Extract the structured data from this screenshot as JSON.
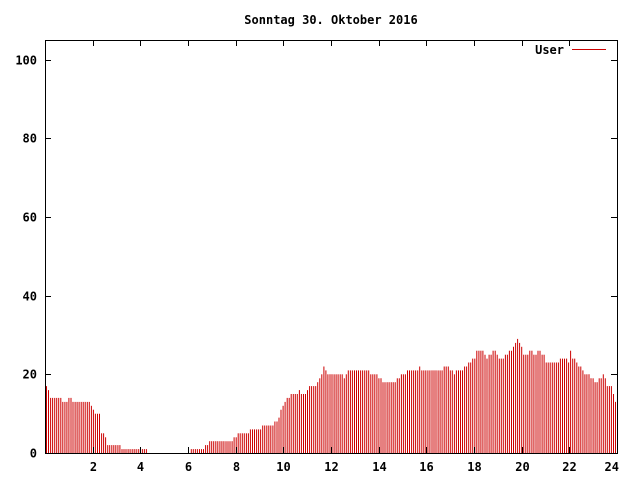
{
  "chart_data": {
    "type": "bar",
    "title": "Sonntag 30. Oktober 2016",
    "xlabel": "",
    "ylabel": "",
    "xlim": [
      0,
      24
    ],
    "ylim": [
      0,
      105
    ],
    "x_ticks": [
      2,
      4,
      6,
      8,
      10,
      12,
      14,
      16,
      18,
      20,
      22,
      24
    ],
    "y_ticks": [
      0,
      20,
      40,
      60,
      80,
      100
    ],
    "grid": false,
    "legend_position": "top-right",
    "color": "#cc0000",
    "series": [
      {
        "name": "User",
        "interval_hours": 0.0833,
        "values": [
          17,
          16,
          14,
          14,
          14,
          14,
          14,
          14,
          13,
          13,
          13,
          14,
          14,
          13,
          13,
          13,
          13,
          13,
          13,
          13,
          13,
          13,
          12,
          11,
          10,
          10,
          10,
          5,
          5,
          4,
          2,
          2,
          2,
          2,
          2,
          2,
          2,
          1,
          1,
          1,
          1,
          1,
          1,
          1,
          1,
          1,
          1,
          1,
          1,
          1,
          0,
          0,
          0,
          0,
          0,
          0,
          0,
          0,
          0,
          0,
          0,
          0,
          0,
          0,
          0,
          0,
          0,
          0,
          0,
          0,
          0,
          1,
          1,
          1,
          1,
          1,
          1,
          1,
          2,
          2,
          3,
          3,
          3,
          3,
          3,
          3,
          3,
          3,
          3,
          3,
          3,
          3,
          4,
          4,
          5,
          5,
          5,
          5,
          5,
          5,
          6,
          6,
          6,
          6,
          6,
          6,
          7,
          7,
          7,
          7,
          7,
          7,
          8,
          8,
          9,
          11,
          12,
          13,
          14,
          14,
          15,
          15,
          15,
          15,
          16,
          15,
          15,
          15,
          16,
          17,
          17,
          17,
          17,
          18,
          19,
          20,
          22,
          21,
          20,
          20,
          20,
          20,
          20,
          20,
          20,
          20,
          19,
          20,
          21,
          21,
          21,
          21,
          21,
          21,
          21,
          21,
          21,
          21,
          21,
          20,
          20,
          20,
          20,
          19,
          19,
          18,
          18,
          18,
          18,
          18,
          18,
          18,
          19,
          19,
          20,
          20,
          20,
          21,
          21,
          21,
          21,
          21,
          21,
          22,
          21,
          21,
          21,
          21,
          21,
          21,
          21,
          21,
          21,
          21,
          21,
          22,
          22,
          22,
          21,
          21,
          20,
          21,
          21,
          21,
          21,
          22,
          22,
          23,
          23,
          24,
          24,
          26,
          26,
          26,
          26,
          25,
          24,
          25,
          25,
          26,
          26,
          25,
          24,
          24,
          24,
          25,
          25,
          26,
          26,
          27,
          28,
          29,
          28,
          27,
          25,
          25,
          25,
          26,
          26,
          25,
          25,
          26,
          26,
          25,
          25,
          23,
          23,
          23,
          23,
          23,
          23,
          23,
          24,
          24,
          24,
          24,
          23,
          26,
          24,
          24,
          23,
          22,
          22,
          21,
          20,
          20,
          20,
          19,
          19,
          18,
          18,
          19,
          19,
          20,
          19,
          17,
          17,
          17,
          15,
          13
        ]
      }
    ]
  }
}
